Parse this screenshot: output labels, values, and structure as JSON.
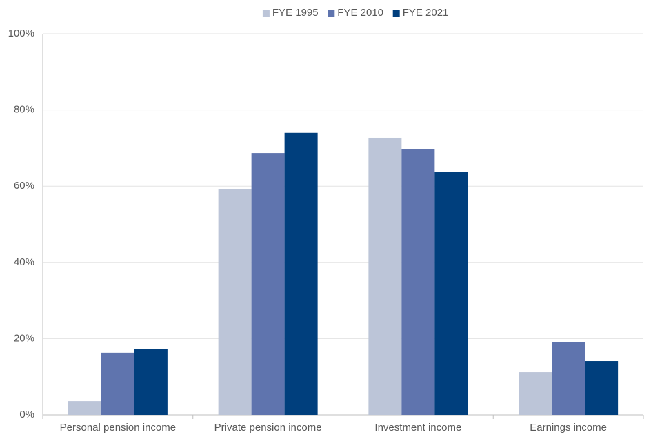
{
  "chart_data": {
    "type": "bar",
    "categories": [
      "Personal pension income",
      "Private pension income",
      "Investment income",
      "Earnings income"
    ],
    "series": [
      {
        "name": "FYE 1995",
        "color": "#bcc5d8",
        "values": [
          3.6,
          59.3,
          72.7,
          11.2
        ]
      },
      {
        "name": "FYE 2010",
        "color": "#5f74ae",
        "values": [
          16.3,
          68.7,
          69.8,
          19.0
        ]
      },
      {
        "name": "FYE 2021",
        "color": "#003f7d",
        "values": [
          17.2,
          74.0,
          63.7,
          14.1
        ]
      }
    ],
    "ylim": [
      0,
      100
    ],
    "yticks": [
      {
        "value": 0,
        "label": "0%"
      },
      {
        "value": 20,
        "label": "20%"
      },
      {
        "value": 40,
        "label": "40%"
      },
      {
        "value": 60,
        "label": "60%"
      },
      {
        "value": 80,
        "label": "80%"
      },
      {
        "value": 100,
        "label": "100%"
      }
    ],
    "grid": true,
    "legend": "top"
  }
}
